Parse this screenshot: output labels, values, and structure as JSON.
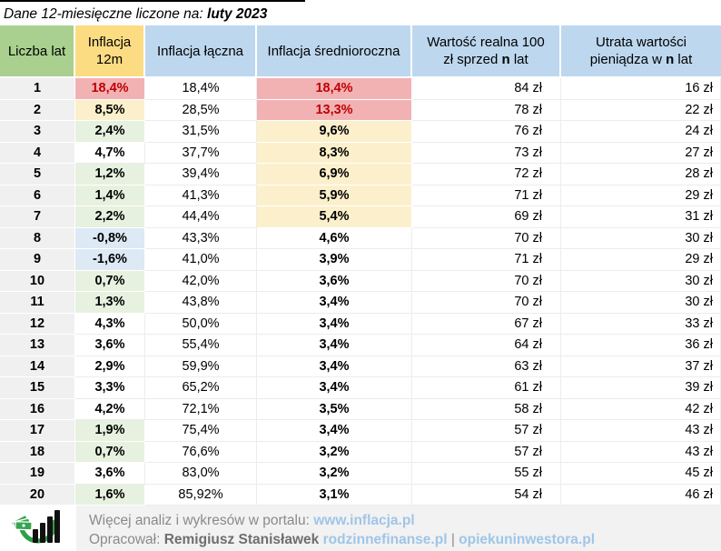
{
  "title": {
    "prefix": "Dane 12-miesięczne liczone na: ",
    "period": "luty 2023"
  },
  "headers": {
    "h1": "Liczba lat",
    "h2a": "Inflacja",
    "h2b": "12m",
    "h3": "Inflacja łączna",
    "h4": "Inflacja średnioroczna",
    "h5a": "Wartość realna 100",
    "h5b_pre": "zł sprzed ",
    "h5b_n": "n",
    "h5b_post": " lat",
    "h6a": "Utrata wartości",
    "h6b_pre": "pieniądza w ",
    "h6b_n": "n",
    "h6b_post": " lat"
  },
  "chart_data": {
    "type": "table",
    "columns": [
      "Liczba lat",
      "Inflacja 12m",
      "Inflacja łączna",
      "Inflacja średnioroczna",
      "Wartość realna 100 zł sprzed n lat",
      "Utrata wartości pieniądza w n lat"
    ],
    "rows": [
      [
        "1",
        "18,4%",
        "red",
        "18,4%",
        "18,4%",
        "red",
        "84 zł",
        "16 zł"
      ],
      [
        "2",
        "8,5%",
        "yellow",
        "28,5%",
        "13,3%",
        "red",
        "78 zł",
        "22 zł"
      ],
      [
        "3",
        "2,4%",
        "green",
        "31,5%",
        "9,6%",
        "yellow",
        "76 zł",
        "24 zł"
      ],
      [
        "4",
        "4,7%",
        "white",
        "37,7%",
        "8,3%",
        "yellow",
        "73 zł",
        "27 zł"
      ],
      [
        "5",
        "1,2%",
        "green",
        "39,4%",
        "6,9%",
        "yellow",
        "72 zł",
        "28 zł"
      ],
      [
        "6",
        "1,4%",
        "green",
        "41,3%",
        "5,9%",
        "yellow",
        "71 zł",
        "29 zł"
      ],
      [
        "7",
        "2,2%",
        "green",
        "44,4%",
        "5,4%",
        "yellow",
        "69 zł",
        "31 zł"
      ],
      [
        "8",
        "-0,8%",
        "blue",
        "43,3%",
        "4,6%",
        "white",
        "70 zł",
        "30 zł"
      ],
      [
        "9",
        "-1,6%",
        "blue",
        "41,0%",
        "3,9%",
        "white",
        "71 zł",
        "29 zł"
      ],
      [
        "10",
        "0,7%",
        "green",
        "42,0%",
        "3,6%",
        "white",
        "70 zł",
        "30 zł"
      ],
      [
        "11",
        "1,3%",
        "green",
        "43,8%",
        "3,4%",
        "white",
        "70 zł",
        "30 zł"
      ],
      [
        "12",
        "4,3%",
        "white",
        "50,0%",
        "3,4%",
        "white",
        "67 zł",
        "33 zł"
      ],
      [
        "13",
        "3,6%",
        "white",
        "55,4%",
        "3,4%",
        "white",
        "64 zł",
        "36 zł"
      ],
      [
        "14",
        "2,9%",
        "white",
        "59,9%",
        "3,4%",
        "white",
        "63 zł",
        "37 zł"
      ],
      [
        "15",
        "3,3%",
        "white",
        "65,2%",
        "3,4%",
        "white",
        "61 zł",
        "39 zł"
      ],
      [
        "16",
        "4,2%",
        "white",
        "72,1%",
        "3,5%",
        "white",
        "58 zł",
        "42 zł"
      ],
      [
        "17",
        "1,9%",
        "green",
        "75,4%",
        "3,4%",
        "white",
        "57 zł",
        "43 zł"
      ],
      [
        "18",
        "0,7%",
        "green",
        "76,6%",
        "3,2%",
        "white",
        "57 zł",
        "43 zł"
      ],
      [
        "19",
        "3,6%",
        "white",
        "83,0%",
        "3,2%",
        "white",
        "55 zł",
        "45 zł"
      ],
      [
        "20",
        "1,6%",
        "green",
        "85,92%",
        "3,1%",
        "white",
        "54 zł",
        "46 zł"
      ]
    ]
  },
  "footer": {
    "line1_text": "Więcej analiz i wykresów w portalu: ",
    "line1_link": "www.inflacja.pl",
    "line2_label": "Opracował: ",
    "line2_name": "Remigiusz Stanisławek",
    "line2_link1": "rodzinnefinanse.pl",
    "line2_sep": " | ",
    "line2_link2": "opiekuninwestora.pl"
  },
  "colors": {
    "header_green": "#a9d08e",
    "header_yellow": "#fcdc83",
    "header_blue": "#bdd7ee",
    "cell_red_bg": "#f2b2b4",
    "cell_red_text": "#c00000",
    "cell_yellow_bg": "#fcf0cc",
    "cell_green_bg": "#e7f1df",
    "cell_blue_bg": "#dde9f5",
    "row_label_gray": "#f0f0f0",
    "footer_bg": "#f2f2f2",
    "footer_text_gray": "#8a8a8a",
    "link_blue": "#9fc5e8",
    "logo_green": "#2e9e49",
    "logo_black": "#111111"
  }
}
